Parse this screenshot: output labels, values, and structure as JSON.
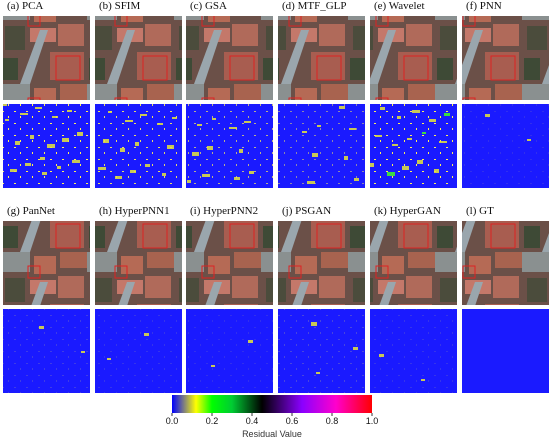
{
  "panels": [
    {
      "label": "(a) PCA"
    },
    {
      "label": "(b) SFIM"
    },
    {
      "label": "(c) GSA"
    },
    {
      "label": "(d) MTF_GLP"
    },
    {
      "label": "(e) Wavelet"
    },
    {
      "label": "(f) PNN"
    },
    {
      "label": "(g) PanNet"
    },
    {
      "label": "(h) HyperPNN1"
    },
    {
      "label": "(i) HyperPNN2"
    },
    {
      "label": "(j) PSGAN"
    },
    {
      "label": "(k) HyperGAN"
    },
    {
      "label": "(l) GT"
    }
  ],
  "colorbar": {
    "title": "Residual Value",
    "ticks": [
      {
        "value": 0,
        "label": "0.0"
      },
      {
        "value": 0.2,
        "label": "0.2"
      },
      {
        "value": 0.4,
        "label": "0.4"
      },
      {
        "value": 0.6,
        "label": "0.6"
      },
      {
        "value": 0.8,
        "label": "0.8"
      },
      {
        "value": 1,
        "label": "1.0"
      }
    ],
    "range": [
      0,
      1
    ]
  }
}
